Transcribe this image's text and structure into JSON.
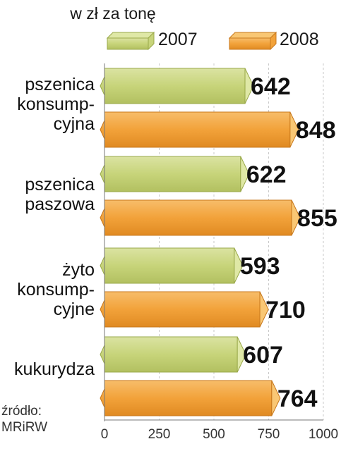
{
  "chart_data": {
    "type": "bar",
    "orientation": "horizontal",
    "unit_label": "w zł za tonę",
    "categories": [
      "pszenica\nkonsump-\ncyjna",
      "pszenica\npaszowa",
      "żyto\nkonsump-\ncyjne",
      "kukurydza"
    ],
    "series": [
      {
        "name": "2007",
        "values": [
          642,
          622,
          593,
          607
        ],
        "color": "#c7d47a"
      },
      {
        "name": "2008",
        "values": [
          848,
          855,
          710,
          764
        ],
        "color": "#f2a23a"
      }
    ],
    "x_ticks": [
      "0",
      "250",
      "500",
      "750",
      "1000"
    ],
    "xlim": [
      0,
      1000
    ],
    "legend_position": "top",
    "source": "źródło:\nMRiRW"
  }
}
